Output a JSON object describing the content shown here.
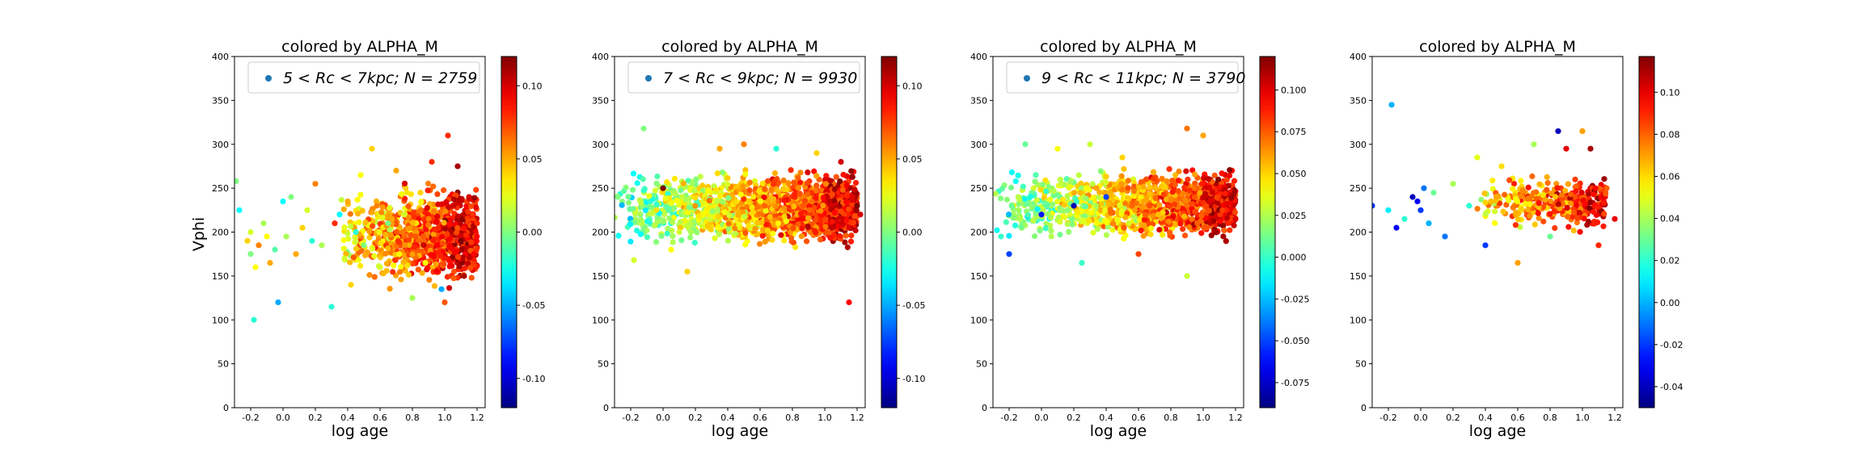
{
  "figure": {
    "ylabel": "Vphi",
    "colormap": "jet"
  },
  "chart_data": [
    {
      "type": "scatter",
      "title": "colored by ALPHA_M",
      "xlabel": "log age",
      "xlim": [
        -0.3,
        1.25
      ],
      "ylim": [
        0,
        400
      ],
      "xticks": [
        "-0.2",
        "0.0",
        "0.2",
        "0.4",
        "0.6",
        "0.8",
        "1.0",
        "1.2"
      ],
      "yticks": [
        "0",
        "50",
        "100",
        "150",
        "200",
        "250",
        "300",
        "350",
        "400"
      ],
      "legend": {
        "label": "5 < Rc < 7kpc;  N = 2759",
        "position": "top-right",
        "marker_color": "#1f77b4"
      },
      "colorbar": {
        "vmin": -0.12,
        "vmax": 0.12,
        "ticks": [
          "-0.10",
          "-0.05",
          "0.00",
          "0.05",
          "0.10"
        ]
      },
      "N": 2759,
      "points": [
        [
          -0.29,
          258,
          0.0
        ],
        [
          -0.27,
          225,
          -0.03
        ],
        [
          -0.22,
          190,
          0.04
        ],
        [
          -0.2,
          200,
          0.02
        ],
        [
          -0.2,
          175,
          0.0
        ],
        [
          -0.18,
          100,
          -0.02
        ],
        [
          -0.17,
          160,
          0.03
        ],
        [
          -0.15,
          185,
          0.06
        ],
        [
          -0.12,
          210,
          0.01
        ],
        [
          -0.1,
          195,
          0.03
        ],
        [
          -0.08,
          165,
          0.05
        ],
        [
          -0.05,
          180,
          -0.01
        ],
        [
          -0.03,
          120,
          -0.05
        ],
        [
          0.0,
          235,
          -0.03
        ],
        [
          0.02,
          195,
          0.01
        ],
        [
          0.05,
          240,
          0.0
        ],
        [
          0.08,
          175,
          0.05
        ],
        [
          0.12,
          205,
          0.04
        ],
        [
          0.15,
          225,
          0.02
        ],
        [
          0.18,
          190,
          -0.02
        ],
        [
          0.2,
          255,
          0.06
        ],
        [
          0.24,
          185,
          0.01
        ],
        [
          0.3,
          115,
          -0.02
        ],
        [
          0.32,
          210,
          0.08
        ],
        [
          0.35,
          220,
          -0.03
        ],
        [
          0.38,
          170,
          0.02
        ],
        [
          0.4,
          235,
          0.05
        ],
        [
          0.42,
          140,
          0.04
        ],
        [
          0.45,
          200,
          -0.02
        ],
        [
          0.48,
          265,
          0.03
        ],
        [
          0.5,
          185,
          0.0
        ],
        [
          0.55,
          295,
          0.04
        ],
        [
          0.58,
          230,
          0.06
        ],
        [
          0.6,
          160,
          0.02
        ],
        [
          0.65,
          210,
          0.0
        ],
        [
          0.7,
          270,
          0.05
        ],
        [
          0.72,
          175,
          0.03
        ],
        [
          0.75,
          220,
          0.02
        ],
        [
          0.8,
          125,
          0.01
        ],
        [
          0.82,
          195,
          0.07
        ],
        [
          0.85,
          245,
          0.04
        ],
        [
          0.88,
          165,
          0.03
        ],
        [
          0.9,
          215,
          0.06
        ],
        [
          0.92,
          280,
          0.08
        ],
        [
          0.95,
          185,
          0.09
        ],
        [
          0.98,
          135,
          -0.05
        ],
        [
          1.0,
          120,
          0.07
        ],
        [
          1.02,
          310,
          0.08
        ],
        [
          1.05,
          230,
          0.1
        ],
        [
          1.08,
          275,
          0.11
        ],
        [
          1.1,
          190,
          0.12
        ],
        [
          1.12,
          150,
          0.11
        ],
        [
          1.15,
          240,
          0.1
        ],
        [
          1.18,
          175,
          0.09
        ],
        [
          1.2,
          210,
          0.08
        ]
      ],
      "cloud": {
        "x_range": [
          0.35,
          1.2
        ],
        "y_center": 195,
        "y_spread": 38,
        "count": 900
      }
    },
    {
      "type": "scatter",
      "title": "colored by ALPHA_M",
      "xlabel": "log age",
      "xlim": [
        -0.3,
        1.25
      ],
      "ylim": [
        0,
        400
      ],
      "xticks": [
        "-0.2",
        "0.0",
        "0.2",
        "0.4",
        "0.6",
        "0.8",
        "1.0",
        "1.2"
      ],
      "yticks": [
        "0",
        "50",
        "100",
        "150",
        "200",
        "250",
        "300",
        "350",
        "400"
      ],
      "legend": {
        "label": "7 < Rc < 9kpc;  N = 9930",
        "position": "top-right",
        "marker_color": "#1f77b4"
      },
      "colorbar": {
        "vmin": -0.12,
        "vmax": 0.12,
        "ticks": [
          "-0.10",
          "-0.05",
          "0.00",
          "0.05",
          "0.10"
        ]
      },
      "N": 9930,
      "points": [
        [
          -0.12,
          318,
          0.0
        ],
        [
          -0.18,
          168,
          0.02
        ],
        [
          0.15,
          155,
          0.04
        ],
        [
          0.1,
          200,
          0.02
        ],
        [
          0.35,
          295,
          0.05
        ],
        [
          0.5,
          300,
          0.06
        ],
        [
          0.7,
          295,
          -0.02
        ],
        [
          0.95,
          290,
          0.04
        ],
        [
          1.1,
          280,
          0.1
        ],
        [
          1.15,
          120,
          0.09
        ],
        [
          1.2,
          230,
          0.12
        ],
        [
          1.22,
          220,
          0.1
        ],
        [
          -0.28,
          240,
          0.0
        ],
        [
          0.0,
          250,
          0.12
        ],
        [
          0.05,
          180,
          0.03
        ]
      ],
      "cloud": {
        "x_range": [
          -0.3,
          1.2
        ],
        "y_center": 228,
        "y_spread": 30,
        "count": 1500
      }
    },
    {
      "type": "scatter",
      "title": "colored by ALPHA_M",
      "xlabel": "log age",
      "xlim": [
        -0.3,
        1.25
      ],
      "ylim": [
        0,
        400
      ],
      "xticks": [
        "-0.2",
        "0.0",
        "0.2",
        "0.4",
        "0.6",
        "0.8",
        "1.0",
        "1.2"
      ],
      "yticks": [
        "0",
        "50",
        "100",
        "150",
        "200",
        "250",
        "300",
        "350",
        "400"
      ],
      "legend": {
        "label": "9 < Rc < 11kpc;  N = 3790",
        "position": "top-right",
        "marker_color": "#1f77b4"
      },
      "colorbar": {
        "vmin": -0.09,
        "vmax": 0.12,
        "ticks": [
          "-0.075",
          "-0.050",
          "-0.025",
          "0.000",
          "0.025",
          "0.050",
          "0.075",
          "0.100"
        ]
      },
      "N": 3790,
      "points": [
        [
          -0.2,
          175,
          -0.05
        ],
        [
          -0.1,
          300,
          0.01
        ],
        [
          0.1,
          295,
          0.04
        ],
        [
          0.3,
          300,
          0.03
        ],
        [
          0.5,
          285,
          0.05
        ],
        [
          0.9,
          318,
          0.07
        ],
        [
          1.0,
          310,
          0.06
        ],
        [
          1.2,
          215,
          0.1
        ],
        [
          0.25,
          165,
          0.0
        ],
        [
          0.9,
          150,
          0.03
        ],
        [
          0.6,
          175,
          0.08
        ],
        [
          -0.25,
          195,
          0.0
        ],
        [
          0.0,
          220,
          -0.06
        ],
        [
          0.2,
          230,
          -0.08
        ],
        [
          0.4,
          240,
          -0.05
        ]
      ],
      "cloud": {
        "x_range": [
          -0.3,
          1.2
        ],
        "y_center": 232,
        "y_spread": 28,
        "count": 1200
      }
    },
    {
      "type": "scatter",
      "title": "colored by ALPHA_M",
      "xlabel": "log age",
      "xlim": [
        -0.3,
        1.25
      ],
      "ylim": [
        0,
        400
      ],
      "xticks": [
        "-0.2",
        "0.0",
        "0.2",
        "0.4",
        "0.6",
        "0.8",
        "1.0",
        "1.2"
      ],
      "yticks": [
        "0",
        "50",
        "100",
        "150",
        "200",
        "250",
        "300",
        "350",
        "400"
      ],
      "legend": null,
      "colorbar": {
        "vmin": -0.05,
        "vmax": 0.117,
        "ticks": [
          "-0.04",
          "-0.02",
          "0.00",
          "0.02",
          "0.04",
          "0.06",
          "0.08",
          "0.10"
        ]
      },
      "points": [
        [
          -0.18,
          345,
          0.0
        ],
        [
          -0.3,
          230,
          -0.02
        ],
        [
          -0.2,
          225,
          0.01
        ],
        [
          -0.15,
          205,
          -0.03
        ],
        [
          -0.1,
          215,
          0.02
        ],
        [
          -0.05,
          240,
          -0.04
        ],
        [
          -0.02,
          235,
          -0.03
        ],
        [
          0.0,
          225,
          -0.02
        ],
        [
          0.02,
          250,
          -0.01
        ],
        [
          0.05,
          210,
          0.0
        ],
        [
          0.08,
          245,
          0.03
        ],
        [
          0.15,
          195,
          -0.01
        ],
        [
          0.2,
          255,
          0.04
        ],
        [
          0.3,
          230,
          0.02
        ],
        [
          0.35,
          285,
          0.05
        ],
        [
          0.4,
          185,
          -0.02
        ],
        [
          0.5,
          275,
          0.06
        ],
        [
          0.6,
          165,
          0.07
        ],
        [
          0.7,
          300,
          0.04
        ],
        [
          0.8,
          195,
          0.03
        ],
        [
          0.85,
          315,
          -0.04
        ],
        [
          0.9,
          295,
          0.1
        ],
        [
          1.0,
          315,
          0.07
        ],
        [
          1.05,
          295,
          0.11
        ],
        [
          1.1,
          185,
          0.09
        ],
        [
          1.15,
          250,
          0.08
        ],
        [
          1.2,
          215,
          0.1
        ]
      ],
      "cloud": {
        "x_range": [
          0.35,
          1.15
        ],
        "y_center": 235,
        "y_spread": 22,
        "count": 320
      }
    }
  ]
}
